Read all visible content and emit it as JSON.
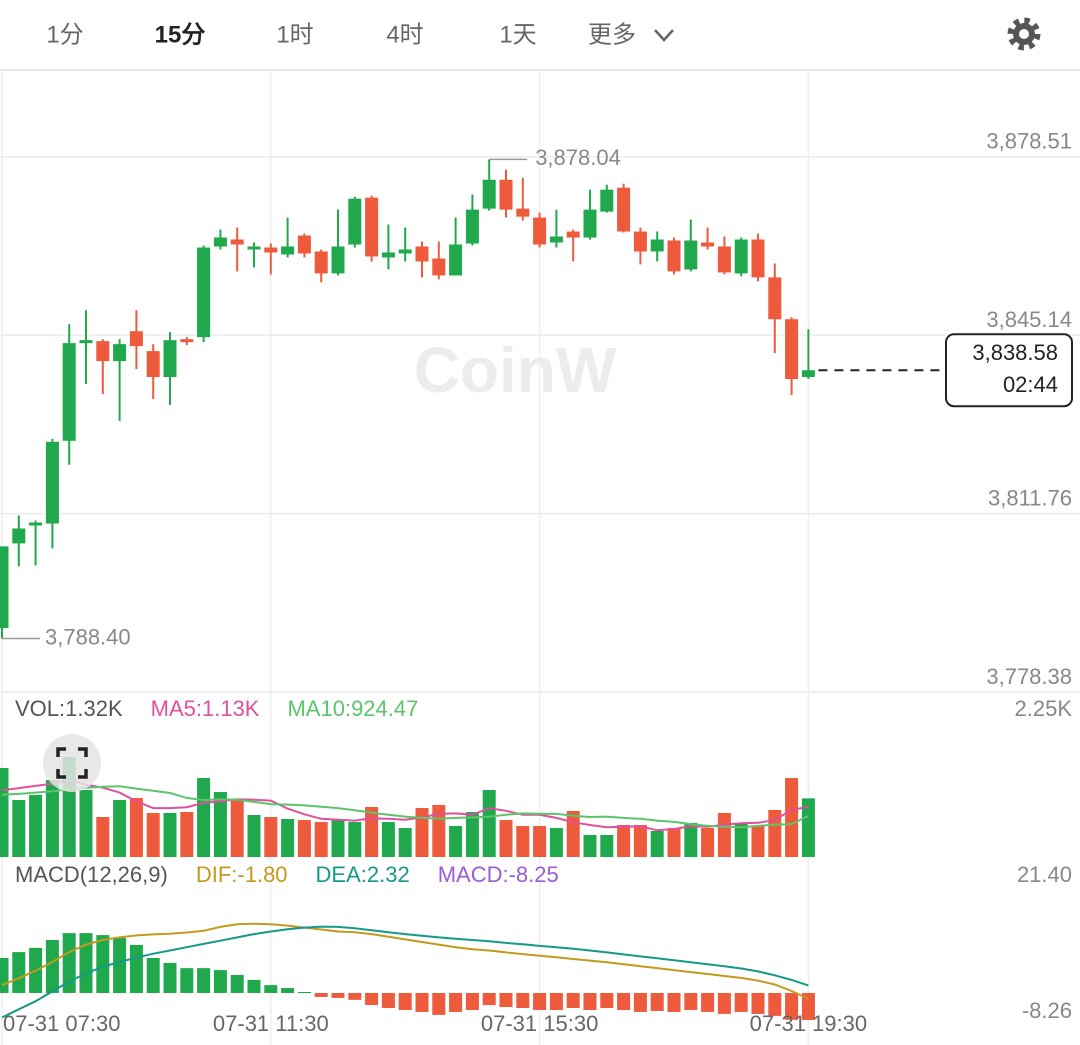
{
  "toolbar": {
    "tabs": [
      "1分",
      "15分",
      "1时",
      "4时",
      "1天",
      "更多"
    ],
    "active": 1
  },
  "watermark": "CoinW",
  "chart_data": [
    {
      "type": "candlestick",
      "categories": [
        "07-31 07:30",
        null,
        null,
        null,
        null,
        null,
        null,
        null,
        null,
        null,
        null,
        null,
        null,
        null,
        null,
        null,
        "07-31 11:30",
        null,
        null,
        null,
        null,
        null,
        null,
        null,
        null,
        null,
        null,
        null,
        null,
        null,
        null,
        null,
        "07-31 15:30",
        null,
        null,
        null,
        null,
        null,
        null,
        null,
        null,
        null,
        null,
        null,
        null,
        null,
        null,
        null,
        "07-31 19:30"
      ],
      "open": [
        3790.33,
        3806.18,
        3809.53,
        3809.9,
        3825.38,
        3843.65,
        3844.02,
        3840.29,
        3845.88,
        3842.16,
        3837.31,
        3844.39,
        3844.77,
        3861.73,
        3863.04,
        3861.17,
        3861.54,
        3860.24,
        3863.78,
        3860.8,
        3856.7,
        3862.1,
        3870.87,
        3859.68,
        3860.43,
        3861.73,
        3859.49,
        3856.32,
        3862.29,
        3868.82,
        3874.22,
        3868.82,
        3867.14,
        3862.48,
        3864.53,
        3863.41,
        3868.26,
        3872.73,
        3864.53,
        3860.8,
        3862.85,
        3857.44,
        3862.48,
        3861.73,
        3856.7,
        3863.04,
        3855.95,
        3848.12,
        3837.31
      ],
      "high": [
        3805.62,
        3811.4,
        3810.46,
        3825.75,
        3847.19,
        3849.8,
        3844.39,
        3844.39,
        3849.8,
        3843.46,
        3845.7,
        3844.77,
        3861.92,
        3864.9,
        3865.27,
        3862.48,
        3862.29,
        3867.14,
        3864.15,
        3861.17,
        3868.63,
        3871.05,
        3871.24,
        3865.83,
        3865.27,
        3862.66,
        3862.66,
        3867.14,
        3871.43,
        3878.04,
        3876.09,
        3874.59,
        3868.07,
        3868.63,
        3864.9,
        3872.36,
        3873.29,
        3873.48,
        3865.27,
        3864.53,
        3863.41,
        3866.76,
        3865.27,
        3863.6,
        3863.41,
        3864.15,
        3858.56,
        3848.49,
        3846.26
      ],
      "low": [
        3788.4,
        3801.89,
        3802.07,
        3805.24,
        3820.9,
        3836.0,
        3834.14,
        3829.11,
        3838.8,
        3833.21,
        3832.09,
        3843.27,
        3843.83,
        3861.17,
        3857.07,
        3857.82,
        3856.51,
        3859.68,
        3859.68,
        3855.02,
        3856.32,
        3861.54,
        3858.93,
        3857.44,
        3858.93,
        3855.95,
        3855.58,
        3856.32,
        3861.92,
        3868.44,
        3867.14,
        3866.58,
        3861.54,
        3861.54,
        3858.93,
        3863.04,
        3868.07,
        3864.34,
        3858.38,
        3858.93,
        3856.51,
        3857.07,
        3861.17,
        3856.51,
        3856.14,
        3855.21,
        3841.78,
        3833.95,
        3836.94
      ],
      "close": [
        3805.62,
        3808.97,
        3810.09,
        3825.19,
        3843.65,
        3844.21,
        3840.29,
        3843.46,
        3843.09,
        3837.31,
        3844.21,
        3843.83,
        3861.54,
        3863.41,
        3862.1,
        3861.73,
        3860.61,
        3861.73,
        3860.43,
        3856.7,
        3861.73,
        3870.68,
        3859.87,
        3860.61,
        3861.17,
        3858.93,
        3856.32,
        3862.1,
        3868.63,
        3874.22,
        3868.63,
        3867.32,
        3862.1,
        3863.6,
        3863.41,
        3868.63,
        3872.36,
        3864.53,
        3860.8,
        3863.04,
        3857.07,
        3862.85,
        3861.73,
        3856.88,
        3863.04,
        3855.95,
        3848.12,
        3836.94,
        3838.58
      ],
      "up_color": "#1fa84c",
      "down_color": "#ee5a3c",
      "ylim": [
        3778.38,
        3889.14
      ],
      "yticks": [
        {
          "value": 3778.38,
          "label": "3,778.38"
        },
        {
          "value": 3811.76,
          "label": "3,811.76"
        },
        {
          "value": 3845.14,
          "label": "3,845.14"
        },
        {
          "value": 3878.51,
          "label": "3,878.51"
        }
      ],
      "grid": true,
      "annotations": [
        "3,878.04",
        "3,788.40"
      ],
      "last_price_label": "3,838.58",
      "countdown": "02:44"
    },
    {
      "type": "volume",
      "label": "VOL:1.32K",
      "values": [
        2002,
        1282,
        1395,
        1732,
        2250,
        1507,
        900,
        1282,
        1327,
        990,
        990,
        1012,
        1777,
        1462,
        1282,
        945,
        900,
        855,
        832,
        787,
        832,
        787,
        1125,
        787,
        652,
        1102,
        1170,
        697,
        1012,
        1507,
        832,
        697,
        697,
        652,
        1035,
        495,
        495,
        720,
        720,
        585,
        652,
        765,
        652,
        990,
        765,
        697,
        1057,
        1777,
        1320
      ],
      "lines": [
        {
          "label": "MA5:1.13K",
          "color": "#e0509e",
          "values": [
            1500,
            1550,
            1600,
            1650,
            1730,
            1630,
            1560,
            1450,
            1250,
            1100,
            1100,
            1120,
            1220,
            1250,
            1300,
            1290,
            1270,
            1090,
            960,
            860,
            840,
            820,
            870,
            860,
            840,
            890,
            970,
            980,
            950,
            1100,
            1040,
            950,
            950,
            880,
            780,
            720,
            670,
            680,
            690,
            600,
            630,
            690,
            680,
            730,
            760,
            770,
            830,
            1060,
            1130
          ]
        },
        {
          "label": "MA10:924.47",
          "color": "#5cc46a",
          "values": [
            1400,
            1420,
            1450,
            1480,
            1520,
            1560,
            1580,
            1590,
            1540,
            1490,
            1440,
            1330,
            1280,
            1300,
            1290,
            1240,
            1190,
            1180,
            1160,
            1130,
            1100,
            1050,
            1000,
            950,
            910,
            880,
            860,
            880,
            890,
            910,
            950,
            980,
            970,
            970,
            930,
            900,
            910,
            880,
            860,
            820,
            790,
            740,
            700,
            680,
            670,
            700,
            730,
            740,
            924.47
          ]
        }
      ],
      "ylim": [
        0,
        2250
      ],
      "yticks": [
        {
          "value": 2250,
          "label": "2.25K"
        }
      ]
    },
    {
      "type": "macd",
      "label": "MACD(12,26,9)",
      "values": [
        10.7,
        12.5,
        13.8,
        16.2,
        18.3,
        18.3,
        17.7,
        16.8,
        14.7,
        10.7,
        9.2,
        7.6,
        7.6,
        7.0,
        5.5,
        4.0,
        2.4,
        1.5,
        0.3,
        -1.2,
        -1.5,
        -2.1,
        -3.7,
        -4.6,
        -5.2,
        -5.8,
        -6.7,
        -5.8,
        -5.2,
        -3.7,
        -4.3,
        -4.6,
        -5.2,
        -5.2,
        -4.6,
        -5.2,
        -4.6,
        -5.2,
        -5.8,
        -5.5,
        -5.8,
        -5.2,
        -5.8,
        -6.4,
        -5.8,
        -6.4,
        -7.0,
        -8.2,
        -8.25
      ],
      "lines": [
        {
          "label": "DIF:-1.80",
          "color": "#c49a1c",
          "values": [
            2.4,
            4.5,
            6.8,
            9.5,
            12.5,
            14.8,
            16.2,
            17.0,
            17.6,
            17.9,
            18.1,
            18.5,
            19.0,
            20.2,
            21.0,
            21.2,
            21.0,
            20.6,
            20.0,
            19.4,
            18.8,
            18.6,
            18.0,
            17.2,
            16.4,
            15.6,
            14.8,
            14.0,
            13.4,
            13.0,
            12.4,
            11.9,
            11.4,
            10.9,
            10.4,
            9.9,
            9.4,
            8.8,
            8.2,
            7.6,
            7.0,
            6.4,
            5.8,
            5.2,
            4.6,
            3.8,
            2.6,
            0.6,
            -1.8
          ]
        },
        {
          "label": "DEA:2.32",
          "color": "#16998a",
          "values": [
            -7.5,
            -5.0,
            -2.5,
            0.5,
            3.5,
            6.0,
            8.0,
            9.5,
            10.8,
            12.0,
            13.0,
            14.0,
            15.0,
            16.0,
            17.0,
            18.0,
            18.8,
            19.5,
            20.0,
            20.3,
            20.2,
            19.8,
            19.2,
            18.6,
            18.0,
            17.5,
            17.0,
            16.6,
            16.2,
            15.8,
            15.3,
            14.9,
            14.4,
            14.0,
            13.5,
            13.0,
            12.4,
            11.8,
            11.2,
            10.6,
            10.0,
            9.4,
            8.8,
            8.2,
            7.5,
            6.6,
            5.4,
            4.0,
            2.32
          ]
        }
      ],
      "hist_label": "MACD:-8.25",
      "hist_label_color": "#9b5cd6",
      "ylim": [
        -8.26,
        21.4
      ],
      "yticks": [
        {
          "value": 21.4,
          "label": "21.40"
        },
        {
          "value": -8.26,
          "label": "-8.26"
        }
      ]
    }
  ]
}
